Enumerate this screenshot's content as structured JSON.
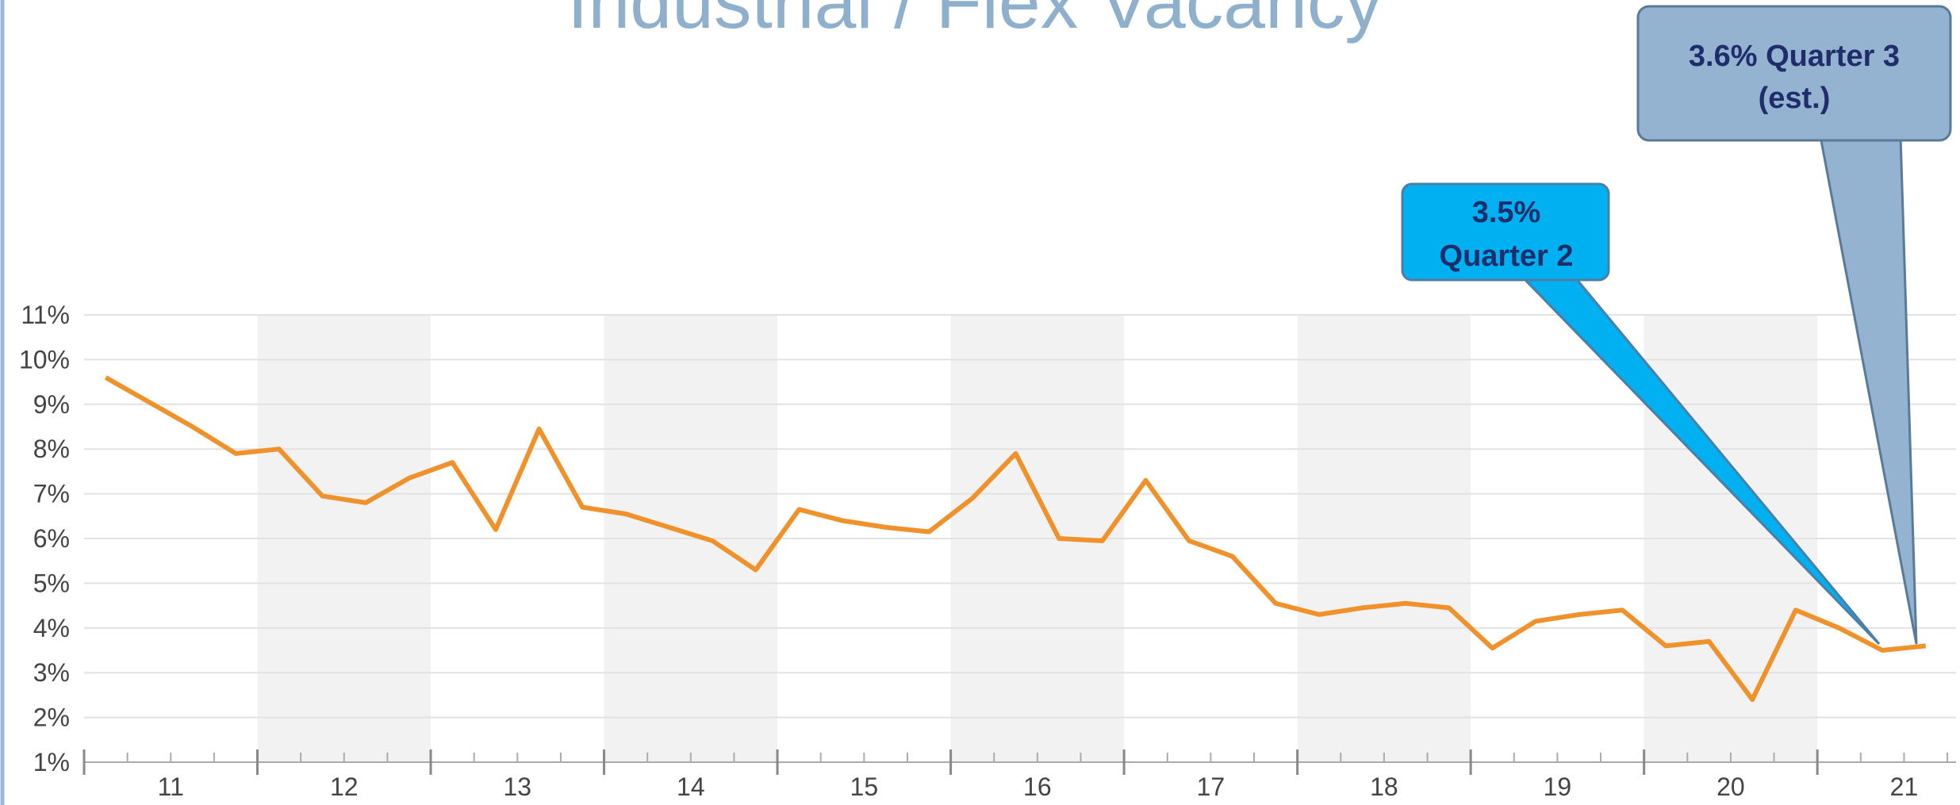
{
  "chart_data": {
    "type": "line",
    "title": "Industrial / Flex  Vacancy",
    "color": "#f0922b",
    "x": [
      11.125,
      11.375,
      11.625,
      11.875,
      12.125,
      12.375,
      12.625,
      12.875,
      13.125,
      13.375,
      13.625,
      13.875,
      14.125,
      14.375,
      14.625,
      14.875,
      15.125,
      15.375,
      15.625,
      15.875,
      16.125,
      16.375,
      16.625,
      16.875,
      17.125,
      17.375,
      17.625,
      17.875,
      18.125,
      18.375,
      18.625,
      18.875,
      19.125,
      19.375,
      19.625,
      19.875,
      20.125,
      20.375,
      20.625,
      20.875,
      21.125,
      21.375,
      21.625
    ],
    "values": [
      9.6,
      9.05,
      8.5,
      7.9,
      8.0,
      6.95,
      6.8,
      7.35,
      7.7,
      6.2,
      8.45,
      6.7,
      6.55,
      6.25,
      5.95,
      5.3,
      6.65,
      6.4,
      6.25,
      6.15,
      6.9,
      7.9,
      6.0,
      5.95,
      7.3,
      5.95,
      5.6,
      4.55,
      4.3,
      4.45,
      4.55,
      4.45,
      3.55,
      4.15,
      4.3,
      4.4,
      3.6,
      3.7,
      2.4,
      4.4,
      4.0,
      3.5,
      3.6
    ],
    "xlim": [
      11,
      21.8
    ],
    "xticks": [
      11,
      12,
      13,
      14,
      15,
      16,
      17,
      18,
      19,
      20,
      21
    ],
    "ylim": [
      1,
      11
    ],
    "yticks": [
      {
        "value": 1,
        "label": "1%"
      },
      {
        "value": 2,
        "label": "2%"
      },
      {
        "value": 3,
        "label": "3%"
      },
      {
        "value": 4,
        "label": "4%"
      },
      {
        "value": 5,
        "label": "5%"
      },
      {
        "value": 6,
        "label": "6%"
      },
      {
        "value": 7,
        "label": "7%"
      },
      {
        "value": 8,
        "label": "8%"
      },
      {
        "value": 9,
        "label": "9%"
      },
      {
        "value": 10,
        "label": "10%"
      },
      {
        "value": 11,
        "label": "11%"
      }
    ],
    "grid": true,
    "annotations": [
      {
        "lines": [
          "3.5%",
          "Quarter 2"
        ]
      },
      {
        "lines": [
          "3.6% Quarter 3",
          "(est.)"
        ]
      }
    ]
  }
}
